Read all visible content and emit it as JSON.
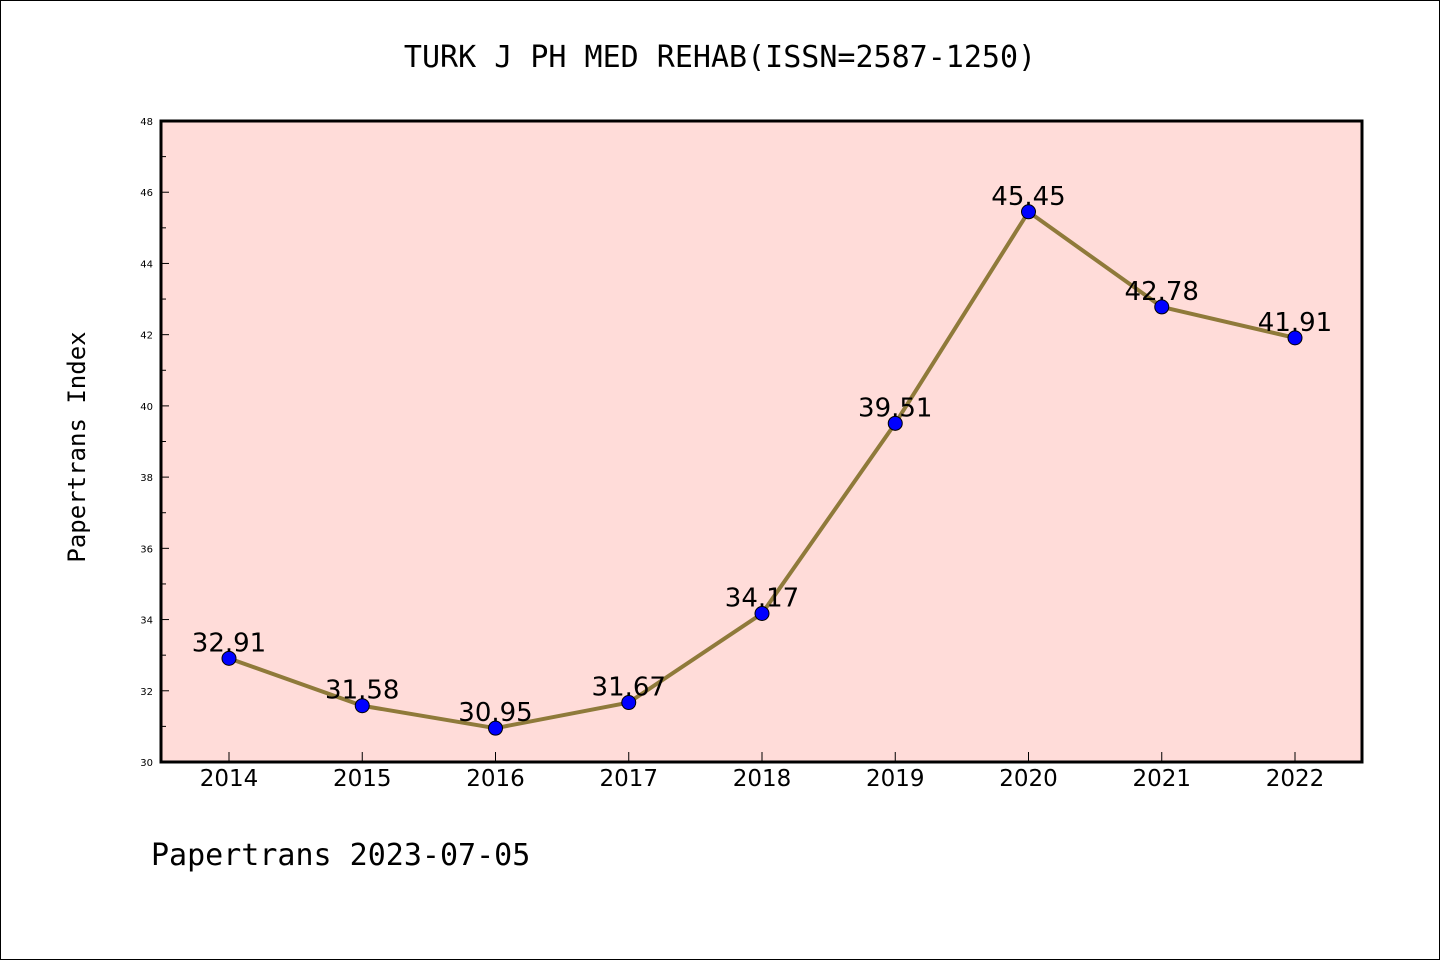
{
  "footer_text": "Papertrans 2023-07-05",
  "colors": {
    "plot_background": "#ffdcd9",
    "line": "#8f7a3a",
    "marker": "#0000ff",
    "axis": "#000000"
  },
  "chart_data": {
    "type": "line",
    "title": "TURK J PH MED REHAB(ISSN=2587-1250)",
    "xlabel": "",
    "ylabel": "Papertrans Index",
    "categories": [
      "2014",
      "2015",
      "2016",
      "2017",
      "2018",
      "2019",
      "2020",
      "2021",
      "2022"
    ],
    "series": [
      {
        "values": [
          32.91,
          31.58,
          30.95,
          31.67,
          34.17,
          39.51,
          45.45,
          42.78,
          41.91
        ],
        "labels": [
          "32.91",
          "31.58",
          "30.95",
          "31.67",
          "34.17",
          "39.51",
          "45.45",
          "42.78",
          "41.91"
        ]
      }
    ],
    "ylim": [
      30,
      48
    ],
    "yticks": [
      "30",
      "32",
      "34",
      "36",
      "38",
      "40",
      "42",
      "44",
      "46",
      "48"
    ],
    "grid": false,
    "legend": "none"
  }
}
